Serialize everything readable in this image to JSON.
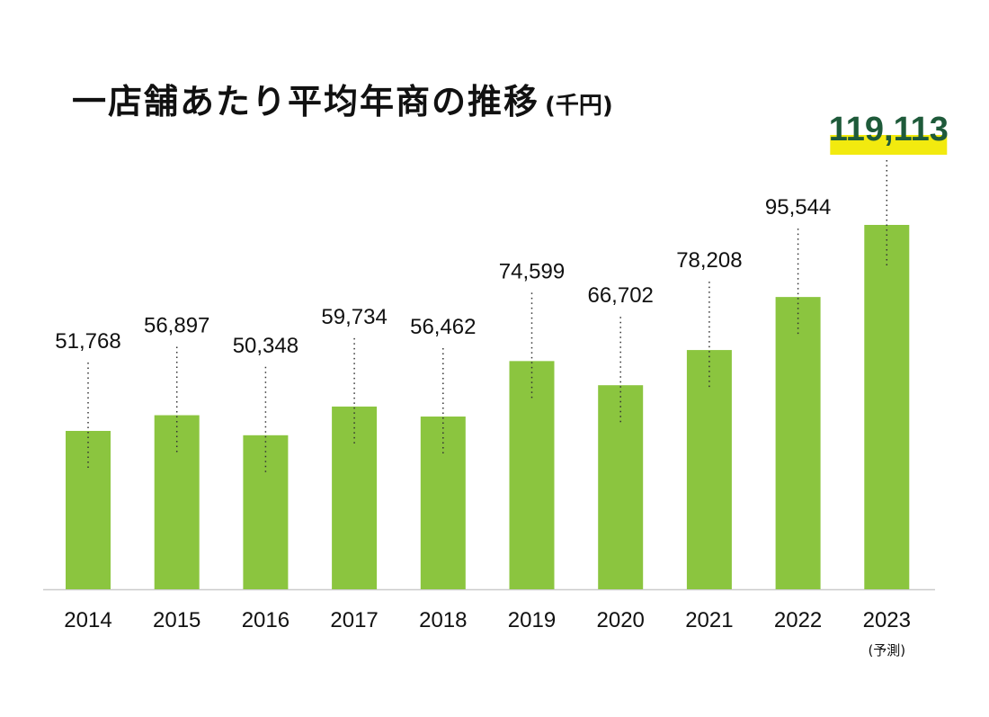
{
  "title": {
    "main": "一店舗あたり平均年商の推移",
    "unit": "(千円)"
  },
  "colors": {
    "bar": "#8bc53f",
    "highlight_bg": "#f2ea0f",
    "highlight_text": "#1e5a3a",
    "baseline": "#cccccc",
    "leader": "#333333"
  },
  "chart_data": {
    "type": "bar",
    "title": "一店舗あたり平均年商の推移",
    "unit": "(千円)",
    "categories": [
      "2014",
      "2015",
      "2016",
      "2017",
      "2018",
      "2019",
      "2020",
      "2021",
      "2022",
      "2023"
    ],
    "category_notes": [
      "",
      "",
      "",
      "",
      "",
      "",
      "",
      "",
      "",
      "(予測)"
    ],
    "values": [
      51768,
      56897,
      50348,
      59734,
      56462,
      74599,
      66702,
      78208,
      95544,
      119113
    ],
    "value_labels": [
      "51,768",
      "56,897",
      "50,348",
      "59,734",
      "56,462",
      "74,599",
      "66,702",
      "78,208",
      "95,544",
      "119,113"
    ],
    "highlight_index": 9,
    "xlabel": "",
    "ylabel": "",
    "grid": false
  }
}
